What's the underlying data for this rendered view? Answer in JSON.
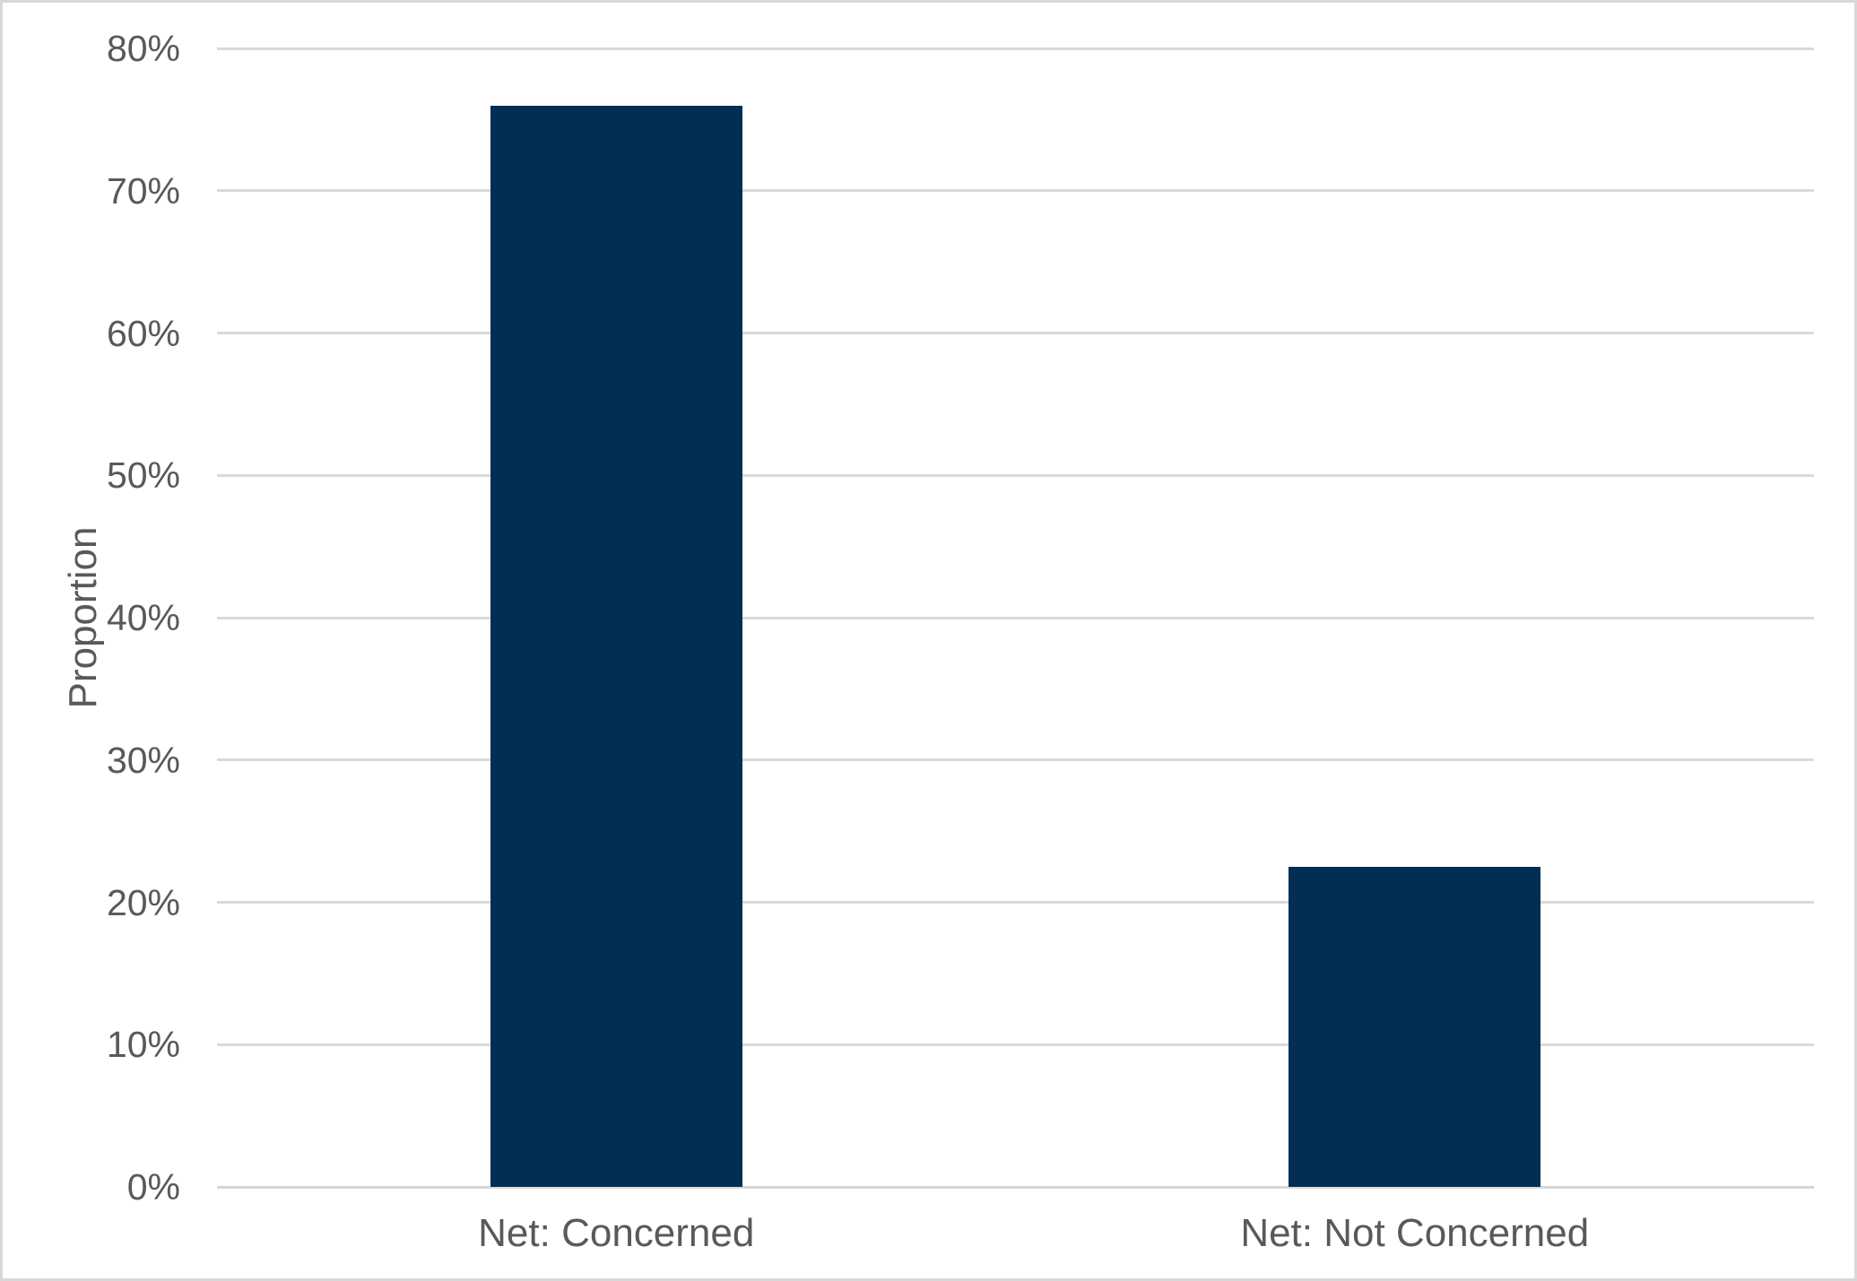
{
  "chart_data": {
    "type": "bar",
    "title": "",
    "categories": [
      "Net: Concerned",
      "Net: Not Concerned"
    ],
    "values": [
      76,
      22.5
    ],
    "value_unit": "%",
    "xlabel": "",
    "ylabel": "Proportion",
    "ylim": [
      0,
      80
    ],
    "ytick_step": 10,
    "ytick_labels": [
      "0%",
      "10%",
      "20%",
      "30%",
      "40%",
      "50%",
      "60%",
      "70%",
      "80%"
    ],
    "grid": true,
    "legend": false,
    "bar_width_fraction": 0.315,
    "colors": {
      "bar": "#022e54",
      "gridline": "#d9d9d9",
      "axis_line": "#d6d6d6",
      "text": "#595959",
      "frame_border": "#d8d8d8",
      "background": "#ffffff"
    }
  }
}
